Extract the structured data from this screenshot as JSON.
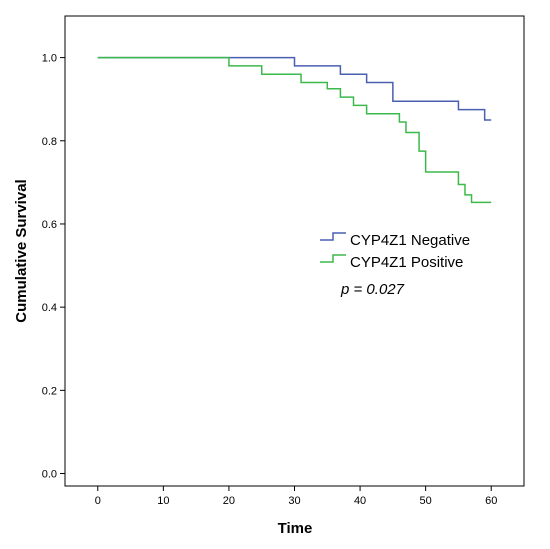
{
  "chart_data": {
    "type": "line",
    "title": "",
    "xlabel": "Time",
    "ylabel": "Cumulative Survival",
    "xlim": [
      -5,
      65
    ],
    "ylim": [
      -0.03,
      1.1
    ],
    "x_ticks": [
      0,
      10,
      20,
      30,
      40,
      50,
      60
    ],
    "y_ticks": [
      0.0,
      0.2,
      0.4,
      0.6,
      0.8,
      1.0
    ],
    "x_tick_labels": [
      "0",
      "10",
      "20",
      "30",
      "40",
      "50",
      "60"
    ],
    "y_tick_labels": [
      "0.0",
      "0.2",
      "0.4",
      "0.6",
      "0.8",
      "1.0"
    ],
    "grid": false,
    "legend_position": "center-right",
    "annotation": "p = 0.027",
    "series": [
      {
        "name": "CYP4Z1 Negative",
        "color": "#4a5fb0",
        "step": true,
        "x": [
          0,
          30,
          37,
          41,
          45,
          55,
          59,
          60
        ],
        "y": [
          1.0,
          0.98,
          0.96,
          0.94,
          0.895,
          0.875,
          0.85,
          0.85
        ]
      },
      {
        "name": "CYP4Z1 Positive",
        "color": "#3cb94b",
        "step": true,
        "x": [
          0,
          20,
          25,
          31,
          35,
          37,
          39,
          41,
          45,
          46,
          47,
          49,
          50,
          55,
          56,
          57,
          60
        ],
        "y": [
          1.0,
          0.98,
          0.96,
          0.94,
          0.925,
          0.905,
          0.885,
          0.865,
          0.865,
          0.845,
          0.82,
          0.775,
          0.725,
          0.695,
          0.67,
          0.652,
          0.652
        ]
      }
    ]
  }
}
